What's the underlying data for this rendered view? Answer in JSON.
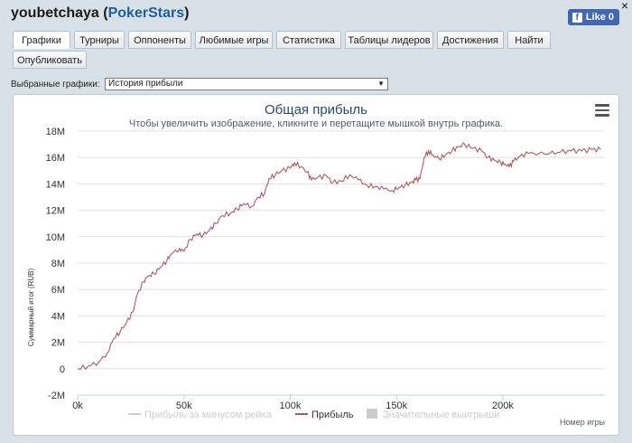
{
  "header": {
    "username": "youbetchaya",
    "site": "PokerStars",
    "open_paren": " (",
    "close_paren": ")"
  },
  "close_label": "×",
  "fb": {
    "like_label": "Like 0"
  },
  "tabs": [
    {
      "label": "Графики",
      "active": true
    },
    {
      "label": "Турниры"
    },
    {
      "label": "Оппоненты"
    },
    {
      "label": "Любимые игры"
    },
    {
      "label": "Статистика"
    },
    {
      "label": "Таблицы лидеров"
    },
    {
      "label": "Достижения"
    },
    {
      "label": "Найти"
    },
    {
      "label": "Опубликовать"
    }
  ],
  "selector": {
    "label": "Выбранные графики:",
    "value": "История прибыли"
  },
  "chart_data": {
    "type": "line",
    "title": "Общая прибыль",
    "subtitle": "Чтобы увеличить изображение, кликните и перетащите мышкой внутрь графика.",
    "ylabel": "Суммарный итог (RUB)",
    "xlabel": "Номер игры",
    "ylim": [
      -2,
      18
    ],
    "xlim": [
      0,
      248
    ],
    "y_ticks": [
      "-2M",
      "0",
      "2M",
      "4M",
      "6M",
      "8M",
      "10M",
      "12M",
      "14M",
      "16M",
      "18M"
    ],
    "x_ticks": [
      "0k",
      "50k",
      "100k",
      "150k",
      "200k"
    ],
    "legend": [
      "Прибыль за минусом рейка",
      "Прибыль",
      "Значительные выигрыши"
    ],
    "legend_position": "bottom",
    "series": [
      {
        "name": "Прибыль",
        "color": "#b15a5a",
        "points": [
          [
            0,
            0
          ],
          [
            5,
            0.2
          ],
          [
            10,
            0.5
          ],
          [
            14,
            1.2
          ],
          [
            17,
            2.3
          ],
          [
            20,
            2.8
          ],
          [
            23,
            3.5
          ],
          [
            26,
            4.3
          ],
          [
            28,
            5.6
          ],
          [
            31,
            6.6
          ],
          [
            33,
            7.0
          ],
          [
            36,
            7.2
          ],
          [
            39,
            7.7
          ],
          [
            42,
            8.2
          ],
          [
            44,
            8.7
          ],
          [
            48,
            9.1
          ],
          [
            50,
            8.9
          ],
          [
            53,
            9.8
          ],
          [
            56,
            10.2
          ],
          [
            59,
            10.1
          ],
          [
            62,
            10.5
          ],
          [
            65,
            11.0
          ],
          [
            68,
            11.6
          ],
          [
            72,
            11.8
          ],
          [
            75,
            12.1
          ],
          [
            78,
            12.5
          ],
          [
            82,
            12.3
          ],
          [
            85,
            13.0
          ],
          [
            88,
            13.3
          ],
          [
            90,
            14.4
          ],
          [
            93,
            14.7
          ],
          [
            96,
            15.0
          ],
          [
            100,
            15.2
          ],
          [
            102,
            15.6
          ],
          [
            105,
            15.3
          ],
          [
            108,
            14.9
          ],
          [
            110,
            14.3
          ],
          [
            113,
            14.5
          ],
          [
            117,
            14.6
          ],
          [
            120,
            14.1
          ],
          [
            124,
            14.2
          ],
          [
            128,
            14.7
          ],
          [
            132,
            14.3
          ],
          [
            136,
            13.9
          ],
          [
            140,
            13.8
          ],
          [
            144,
            13.6
          ],
          [
            148,
            13.5
          ],
          [
            151,
            13.7
          ],
          [
            154,
            13.9
          ],
          [
            157,
            14.1
          ],
          [
            159,
            14.3
          ],
          [
            161,
            14.4
          ],
          [
            163,
            16.0
          ],
          [
            165,
            16.5
          ],
          [
            167,
            16.2
          ],
          [
            170,
            15.9
          ],
          [
            173,
            16.2
          ],
          [
            176,
            16.5
          ],
          [
            179,
            16.8
          ],
          [
            182,
            17.0
          ],
          [
            186,
            16.7
          ],
          [
            190,
            16.5
          ],
          [
            193,
            16.0
          ],
          [
            196,
            15.8
          ],
          [
            199,
            15.6
          ],
          [
            201,
            15.5
          ],
          [
            203,
            15.3
          ],
          [
            205,
            15.7
          ],
          [
            208,
            16.1
          ],
          [
            212,
            16.3
          ],
          [
            217,
            16.3
          ],
          [
            222,
            16.3
          ],
          [
            227,
            16.4
          ],
          [
            232,
            16.5
          ],
          [
            237,
            16.5
          ],
          [
            242,
            16.6
          ],
          [
            246,
            16.6
          ]
        ]
      }
    ]
  }
}
